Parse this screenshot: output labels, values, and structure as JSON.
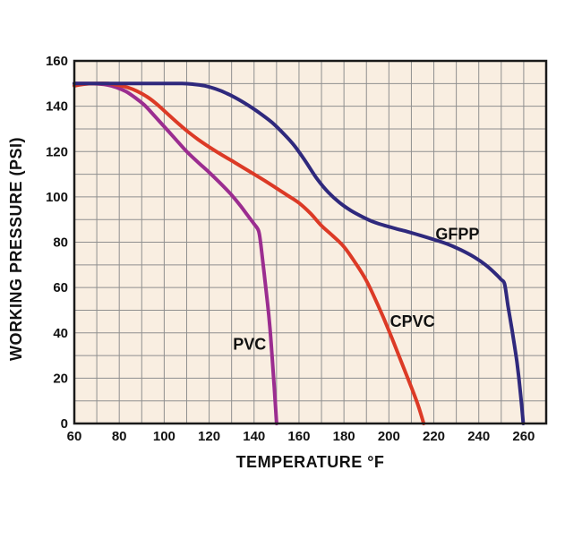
{
  "chart_data": {
    "type": "line",
    "title": "",
    "xlabel": "TEMPERATURE °F",
    "ylabel": "WORKING PRESSURE (PSI)",
    "xlim": [
      60,
      270
    ],
    "ylim": [
      0,
      160
    ],
    "x_grid_step": 10,
    "y_grid_step": 10,
    "grid": true,
    "legend_position": "inline-curve-labels",
    "plot_bg": "#F9EEE1",
    "grid_color": "#8F8F8F",
    "axis_color": "#1A1A1A",
    "x_tick_labels": [
      60,
      80,
      100,
      120,
      140,
      160,
      180,
      200,
      220,
      240,
      260
    ],
    "y_tick_labels": [
      0,
      20,
      40,
      60,
      80,
      100,
      120,
      140,
      160
    ],
    "series": [
      {
        "name": "PVC",
        "color": "#9B2D90",
        "label": {
          "text": "PVC",
          "x": 138,
          "y": 35
        },
        "points": [
          [
            60,
            150
          ],
          [
            66,
            150
          ],
          [
            71,
            149.8
          ],
          [
            75,
            149.3
          ],
          [
            79,
            148.2
          ],
          [
            83,
            146.5
          ],
          [
            87,
            143.8
          ],
          [
            91,
            140.7
          ],
          [
            95,
            136.5
          ],
          [
            100,
            131
          ],
          [
            105,
            125.5
          ],
          [
            110,
            120
          ],
          [
            115,
            115.3
          ],
          [
            120,
            110.8
          ],
          [
            125,
            106
          ],
          [
            130,
            100.8
          ],
          [
            134,
            96
          ],
          [
            137,
            92
          ],
          [
            140,
            88
          ],
          [
            142,
            85
          ],
          [
            143,
            79
          ],
          [
            144.5,
            66
          ],
          [
            146,
            53
          ],
          [
            147,
            43
          ],
          [
            148,
            30
          ],
          [
            149,
            16
          ],
          [
            150,
            0
          ]
        ]
      },
      {
        "name": "CPVC",
        "color": "#DC3A26",
        "label": {
          "text": "CPVC",
          "x": 210.5,
          "y": 45
        },
        "points": [
          [
            60,
            149
          ],
          [
            64,
            149.7
          ],
          [
            69,
            150
          ],
          [
            75,
            150
          ],
          [
            80,
            149.2
          ],
          [
            84,
            148.2
          ],
          [
            88,
            146.6
          ],
          [
            92,
            144.4
          ],
          [
            96,
            141.5
          ],
          [
            100,
            138
          ],
          [
            105,
            133.5
          ],
          [
            110,
            129.2
          ],
          [
            115,
            125.4
          ],
          [
            120,
            122
          ],
          [
            125,
            118.9
          ],
          [
            130,
            116
          ],
          [
            135,
            113
          ],
          [
            140,
            110
          ],
          [
            145,
            107
          ],
          [
            150,
            103.8
          ],
          [
            155,
            100.6
          ],
          [
            160,
            97.3
          ],
          [
            165,
            92.8
          ],
          [
            170,
            87.3
          ],
          [
            175,
            82.8
          ],
          [
            180,
            78
          ],
          [
            185,
            71
          ],
          [
            190,
            63
          ],
          [
            195,
            52.5
          ],
          [
            200,
            41
          ],
          [
            205,
            28.5
          ],
          [
            210,
            16
          ],
          [
            213,
            8
          ],
          [
            215.5,
            0
          ]
        ]
      },
      {
        "name": "GFPP",
        "color": "#2F297D",
        "label": {
          "text": "GFPP",
          "x": 230.5,
          "y": 83.5
        },
        "points": [
          [
            60,
            150
          ],
          [
            70,
            150
          ],
          [
            80,
            150
          ],
          [
            90,
            150
          ],
          [
            100,
            150
          ],
          [
            108,
            150
          ],
          [
            113,
            149.7
          ],
          [
            118,
            149
          ],
          [
            123,
            147.6
          ],
          [
            128,
            145.6
          ],
          [
            133,
            143
          ],
          [
            138,
            140
          ],
          [
            143,
            136.6
          ],
          [
            148,
            132.8
          ],
          [
            153,
            128
          ],
          [
            158,
            122.5
          ],
          [
            163,
            115.5
          ],
          [
            168,
            108
          ],
          [
            173,
            102
          ],
          [
            178,
            97.5
          ],
          [
            183,
            94
          ],
          [
            188,
            91.3
          ],
          [
            193,
            89
          ],
          [
            198,
            87.4
          ],
          [
            203,
            86
          ],
          [
            208,
            84.7
          ],
          [
            214,
            83
          ],
          [
            220,
            81.2
          ],
          [
            226,
            79.2
          ],
          [
            232,
            76.6
          ],
          [
            238,
            73.4
          ],
          [
            243,
            70
          ],
          [
            247,
            66.5
          ],
          [
            250,
            63.5
          ],
          [
            251.5,
            61.5
          ],
          [
            253,
            52
          ],
          [
            255,
            40
          ],
          [
            257,
            27
          ],
          [
            258.5,
            14
          ],
          [
            259.8,
            0
          ]
        ]
      }
    ]
  }
}
